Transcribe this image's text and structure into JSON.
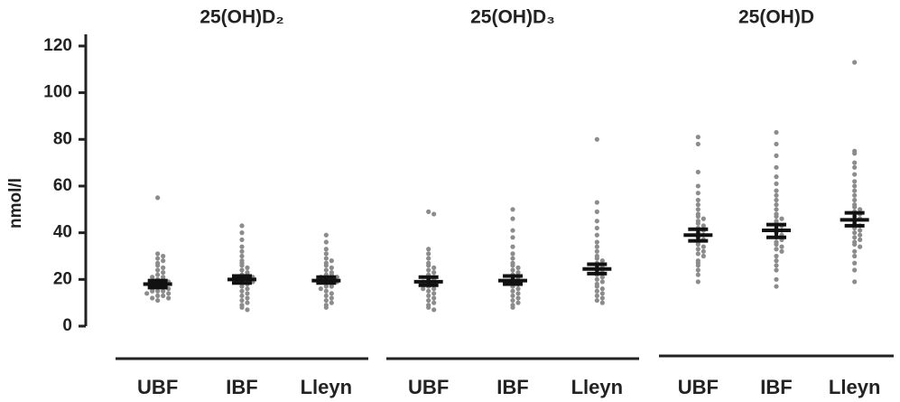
{
  "chart_data": [
    {
      "type": "swarm",
      "title": "25(OH)D₂",
      "y_label": "nmol/l",
      "color": "#8c8c8c",
      "ylim": [
        0,
        125
      ],
      "yticks": [
        0,
        20,
        40,
        60,
        80,
        100,
        120
      ],
      "categories": [
        "UBF",
        "IBF",
        "Lleyn"
      ],
      "points": [
        [
          55,
          31,
          30,
          29,
          28,
          27,
          26,
          25,
          24,
          23,
          22,
          21,
          21,
          20,
          20,
          19,
          19,
          18,
          18,
          17,
          17,
          16,
          16,
          15,
          15,
          15,
          14,
          14,
          13,
          13,
          12,
          12,
          11
        ],
        [
          43,
          40,
          37,
          34,
          32,
          30,
          28,
          27,
          26,
          25,
          24,
          23,
          22,
          22,
          21,
          21,
          20,
          20,
          19,
          19,
          18,
          18,
          17,
          16,
          15,
          14,
          13,
          12,
          11,
          10,
          9,
          8,
          7
        ],
        [
          39,
          36,
          33,
          31,
          29,
          28,
          27,
          26,
          25,
          24,
          23,
          22,
          22,
          21,
          21,
          20,
          20,
          19,
          19,
          18,
          18,
          17,
          17,
          16,
          15,
          14,
          13,
          12,
          11,
          10,
          9,
          8
        ]
      ],
      "means": [
        18,
        20,
        19.5
      ],
      "ci_low": [
        16.5,
        18.5,
        18.5
      ],
      "ci_high": [
        19.5,
        21.5,
        21
      ]
    },
    {
      "type": "swarm",
      "title": "25(OH)D₃",
      "color": "#8c8c8c",
      "categories": [
        "UBF",
        "IBF",
        "Lleyn"
      ],
      "points": [
        [
          49,
          48,
          33,
          31,
          29,
          27,
          26,
          25,
          24,
          23,
          22,
          21,
          20,
          20,
          19,
          18,
          18,
          17,
          16,
          16,
          15,
          14,
          13,
          12,
          11,
          10,
          9,
          8,
          7
        ],
        [
          50,
          46,
          41,
          38,
          34,
          31,
          29,
          27,
          26,
          25,
          24,
          23,
          22,
          21,
          20,
          19,
          18,
          18,
          17,
          16,
          15,
          14,
          13,
          12,
          11,
          10,
          9,
          8
        ],
        [
          80,
          53,
          49,
          45,
          42,
          39,
          36,
          34,
          32,
          30,
          29,
          28,
          27,
          26,
          25,
          24,
          23,
          22,
          21,
          20,
          19,
          18,
          17,
          16,
          15,
          14,
          13,
          12,
          11,
          10
        ]
      ],
      "means": [
        19,
        19.5,
        24.5
      ],
      "ci_low": [
        17.5,
        18,
        22.5
      ],
      "ci_high": [
        21,
        21.5,
        26.5
      ]
    },
    {
      "type": "swarm",
      "title": "25(OH)D",
      "color": "#8c8c8c",
      "categories": [
        "UBF",
        "IBF",
        "Lleyn"
      ],
      "points": [
        [
          81,
          78,
          66,
          60,
          57,
          54,
          52,
          50,
          48,
          47,
          46,
          45,
          44,
          43,
          42,
          41,
          40,
          39,
          38,
          37,
          36,
          35,
          34,
          33,
          32,
          31,
          30,
          28,
          27,
          26,
          24,
          22,
          19
        ],
        [
          83,
          78,
          73,
          68,
          64,
          61,
          58,
          56,
          54,
          52,
          50,
          48,
          47,
          46,
          45,
          44,
          43,
          42,
          41,
          40,
          39,
          38,
          37,
          36,
          35,
          34,
          33,
          32,
          30,
          28,
          26,
          24,
          20,
          17
        ],
        [
          113,
          75,
          74,
          70,
          68,
          65,
          62,
          60,
          58,
          56,
          54,
          52,
          51,
          50,
          49,
          48,
          47,
          46,
          45,
          44,
          43,
          42,
          41,
          40,
          39,
          38,
          37,
          36,
          35,
          34,
          32,
          30,
          27,
          24,
          19
        ]
      ],
      "means": [
        39,
        41,
        45.5
      ],
      "ci_low": [
        36.5,
        38,
        43
      ],
      "ci_high": [
        41.5,
        43.5,
        48.5
      ]
    }
  ]
}
